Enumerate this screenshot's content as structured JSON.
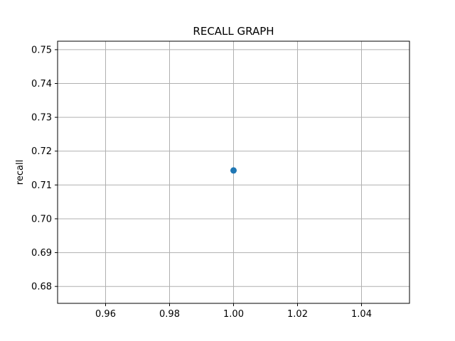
{
  "chart_data": {
    "type": "scatter",
    "title": "RECALL GRAPH",
    "xlabel": "",
    "ylabel": "recall",
    "xlim": [
      0.945,
      1.055
    ],
    "ylim": [
      0.675,
      0.7525
    ],
    "xticks": [
      0.96,
      0.98,
      1.0,
      1.02,
      1.04
    ],
    "xtick_labels": [
      "0.96",
      "0.98",
      "1.00",
      "1.02",
      "1.04"
    ],
    "yticks": [
      0.68,
      0.69,
      0.7,
      0.71,
      0.72,
      0.73,
      0.74,
      0.75
    ],
    "ytick_labels": [
      "0.68",
      "0.69",
      "0.70",
      "0.71",
      "0.72",
      "0.73",
      "0.74",
      "0.75"
    ],
    "grid": true,
    "series": [
      {
        "x": [
          1.0
        ],
        "y": [
          0.7143
        ]
      }
    ],
    "colors": {
      "point": "#1f77b4",
      "grid": "#b0b0b0",
      "axes": "#000000"
    }
  }
}
